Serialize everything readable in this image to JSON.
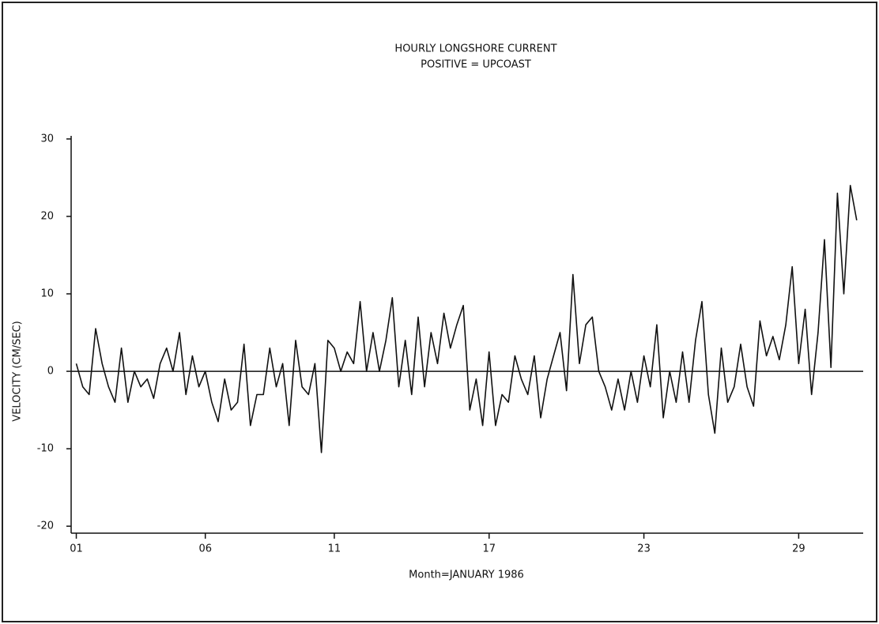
{
  "chart_data": {
    "type": "line",
    "title": "HOURLY LONGSHORE CURRENT",
    "subtitle": "POSITIVE = UPCOAST",
    "x_label": "Month=JANUARY 1986",
    "y_label": "VELOCITY (CM/SEC)",
    "color": "#111111",
    "x": [
      1,
      1.25,
      1.5,
      1.75,
      2,
      2.25,
      2.5,
      2.75,
      3,
      3.25,
      3.5,
      3.75,
      4,
      4.25,
      4.5,
      4.75,
      5,
      5.25,
      5.5,
      5.75,
      6,
      6.25,
      6.5,
      6.75,
      7,
      7.25,
      7.5,
      7.75,
      8,
      8.25,
      8.5,
      8.75,
      9,
      9.25,
      9.5,
      9.75,
      10,
      10.25,
      10.5,
      10.75,
      11,
      11.25,
      11.5,
      11.75,
      12,
      12.25,
      12.5,
      12.75,
      13,
      13.25,
      13.5,
      13.75,
      14,
      14.25,
      14.5,
      14.75,
      15,
      15.25,
      15.5,
      15.75,
      16,
      16.25,
      16.5,
      16.75,
      17,
      17.25,
      17.5,
      17.75,
      18,
      18.25,
      18.5,
      18.75,
      19,
      19.25,
      19.5,
      19.75,
      20,
      20.25,
      20.5,
      20.75,
      21,
      21.25,
      21.5,
      21.75,
      22,
      22.25,
      22.5,
      22.75,
      23,
      23.25,
      23.5,
      23.75,
      24,
      24.25,
      24.5,
      24.75,
      25,
      25.25,
      25.5,
      25.75,
      26,
      26.25,
      26.5,
      26.75,
      27,
      27.25,
      27.5,
      27.75,
      28,
      28.25,
      28.5,
      28.75,
      29,
      29.25,
      29.5,
      29.75,
      30,
      30.25,
      30.5,
      30.75,
      31,
      31.25
    ],
    "values": [
      1,
      -2,
      -3,
      5.5,
      1,
      -2,
      -4,
      3,
      -4,
      0,
      -2,
      -1,
      -3.5,
      1,
      3,
      0,
      5,
      -3,
      2,
      -2,
      0,
      -4,
      -6.5,
      -1,
      -5,
      -4,
      3.5,
      -7,
      -3,
      -3,
      3,
      -2,
      1,
      -7,
      4,
      -2,
      -3,
      1,
      -10.5,
      4,
      3,
      0,
      2.5,
      1,
      9,
      0,
      5,
      0,
      4,
      9.5,
      -2,
      4,
      -3,
      7,
      -2,
      5,
      1,
      7.5,
      3,
      6,
      8.5,
      -5,
      -1,
      -7,
      2.5,
      -7,
      -3,
      -4,
      2,
      -1,
      -3,
      2,
      -6,
      -1,
      2,
      5,
      -2.5,
      12.5,
      1,
      6,
      7,
      0,
      -2,
      -5,
      -1,
      -5,
      0,
      -4,
      2,
      -2,
      6,
      -6,
      0,
      -4,
      2.5,
      -4,
      4,
      9,
      -3,
      -8,
      3,
      -4,
      -2,
      3.5,
      -2,
      -4.5,
      6.5,
      2,
      4.5,
      1.5,
      6,
      13.5,
      1,
      8,
      -3,
      5,
      17,
      0.5,
      23,
      10,
      24,
      19.5
    ],
    "xlim": [
      0.8,
      31.5
    ],
    "xticks": [
      {
        "value": 1,
        "label": "01"
      },
      {
        "value": 6,
        "label": "06"
      },
      {
        "value": 11,
        "label": "11"
      },
      {
        "value": 17,
        "label": "17"
      },
      {
        "value": 23,
        "label": "23"
      },
      {
        "value": 29,
        "label": "29"
      }
    ],
    "ylim": [
      -20.9,
      30.4
    ],
    "yticks": [
      30,
      20,
      10,
      0,
      -10,
      -20
    ]
  }
}
